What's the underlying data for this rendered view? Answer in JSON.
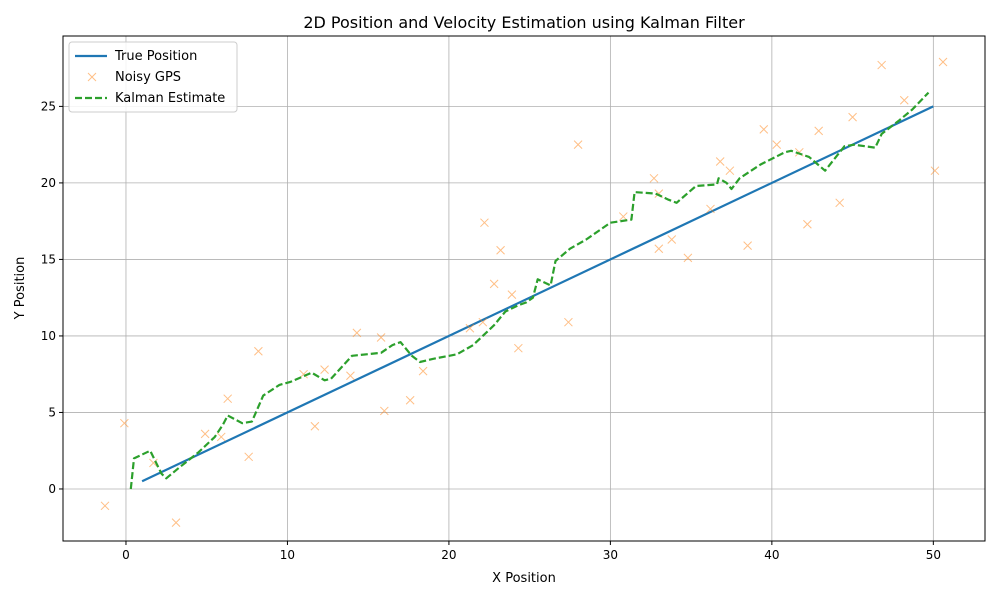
{
  "chart_data": {
    "type": "line",
    "title": "2D Position and Velocity Estimation using Kalman Filter",
    "xlabel": "X Position",
    "ylabel": "Y Position",
    "xlim": [
      -3.9,
      53.2
    ],
    "ylim": [
      -3.4,
      29.6
    ],
    "xticks": [
      0,
      10,
      20,
      30,
      40,
      50
    ],
    "yticks": [
      0,
      5,
      10,
      15,
      20,
      25
    ],
    "grid": true,
    "legend_position": "top-left",
    "colors": {
      "true": "#1f77b4",
      "gps": "#ff7f0e",
      "kalman": "#2ca02c"
    },
    "series": [
      {
        "name": "True Position",
        "style": "solid-line",
        "x": [
          1,
          50
        ],
        "y": [
          0.5,
          25
        ]
      },
      {
        "name": "Noisy GPS",
        "style": "x-markers",
        "x": [
          -1.3,
          -0.1,
          1.7,
          3.1,
          4.9,
          5.9,
          6.3,
          7.6,
          8.2,
          11.0,
          11.7,
          12.3,
          13.9,
          14.3,
          15.8,
          16.0,
          17.6,
          18.4,
          21.3,
          22.1,
          22.2,
          22.8,
          23.2,
          23.9,
          24.3,
          27.4,
          28.0,
          30.8,
          32.7,
          33.0,
          33.0,
          33.8,
          34.8,
          36.2,
          36.8,
          37.4,
          38.5,
          39.5,
          40.3,
          41.7,
          42.2,
          42.9,
          44.2,
          45.0,
          46.8,
          48.2,
          50.1,
          50.6
        ],
        "y": [
          -1.1,
          4.3,
          1.7,
          -2.2,
          3.6,
          3.4,
          5.9,
          2.1,
          9.0,
          7.5,
          4.1,
          7.8,
          7.4,
          10.2,
          9.9,
          5.1,
          5.8,
          7.7,
          10.5,
          10.9,
          17.4,
          13.4,
          15.6,
          12.7,
          9.2,
          10.9,
          22.5,
          17.8,
          20.3,
          19.3,
          15.7,
          16.3,
          15.1,
          18.3,
          21.4,
          20.8,
          15.9,
          23.5,
          22.5,
          22.0,
          17.3,
          23.4,
          18.7,
          24.3,
          27.7,
          25.4,
          20.8,
          27.9
        ]
      },
      {
        "name": "Kalman Estimate",
        "style": "dashed-line",
        "x": [
          0.3,
          0.5,
          1.5,
          2.2,
          2.5,
          3.3,
          4.5,
          5.5,
          6.0,
          6.3,
          7.2,
          7.8,
          8.5,
          9.5,
          10.2,
          11.5,
          12.3,
          12.7,
          14.0,
          15.8,
          16.5,
          17.0,
          17.7,
          18.2,
          19.0,
          20.5,
          21.5,
          22.8,
          23.5,
          24.3,
          24.8,
          25.2,
          25.5,
          26.3,
          26.6,
          27.5,
          28.5,
          30.0,
          31.3,
          31.5,
          32.8,
          33.6,
          34.1,
          35.3,
          36.6,
          36.7,
          37.2,
          37.5,
          38.0,
          39.3,
          40.8,
          41.2,
          42.3,
          43.3,
          44.5,
          45.1,
          46.4,
          46.8,
          47.9,
          48.7,
          49.7
        ],
        "y": [
          0,
          2,
          2.5,
          1.0,
          0.7,
          1.4,
          2.4,
          3.4,
          4.2,
          4.8,
          4.3,
          4.4,
          6.1,
          6.8,
          7.0,
          7.6,
          7.1,
          7.2,
          8.7,
          8.9,
          9.4,
          9.6,
          8.7,
          8.3,
          8.5,
          8.8,
          9.4,
          10.7,
          11.6,
          12.0,
          12.2,
          12.5,
          13.7,
          13.3,
          14.9,
          15.7,
          16.3,
          17.4,
          17.6,
          19.4,
          19.3,
          18.9,
          18.7,
          19.8,
          19.9,
          20.3,
          20.0,
          19.6,
          20.3,
          21.2,
          22.0,
          22.1,
          21.7,
          20.8,
          22.4,
          22.5,
          22.3,
          23.2,
          24.1,
          24.8,
          25.9
        ]
      }
    ]
  }
}
